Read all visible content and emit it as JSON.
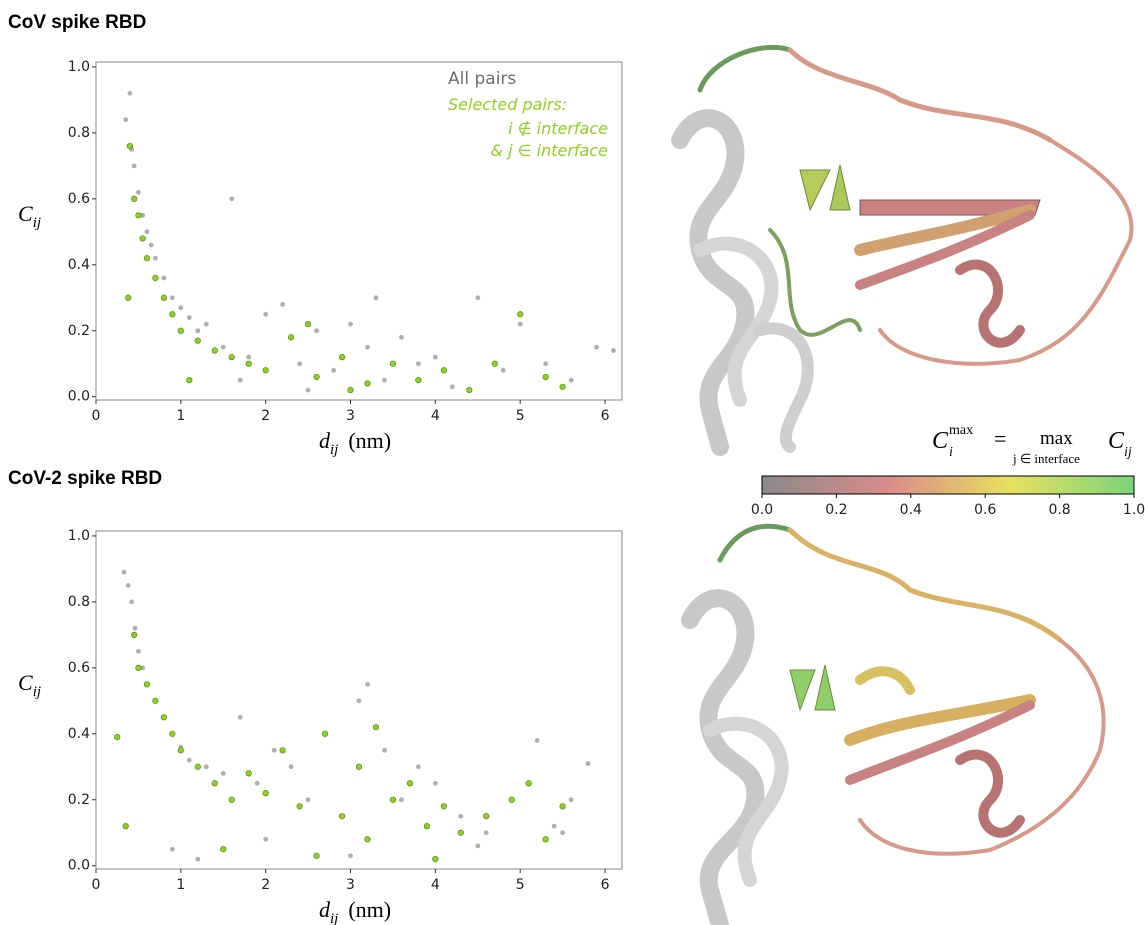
{
  "panels": [
    "CoV spike RBD",
    "CoV-2 spike RBD"
  ],
  "chart_data": [
    {
      "type": "scatter",
      "xlabel": {
        "main": "d",
        "sub": "ij",
        "unit": "(nm)"
      },
      "ylabel": {
        "main": "C",
        "sub": "ij"
      },
      "xlim": [
        0,
        6.2
      ],
      "ylim": [
        -0.01,
        1.015
      ],
      "xticks": [
        0,
        1,
        2,
        3,
        4,
        5,
        6
      ],
      "yticks": [
        {
          "value": 0,
          "label": "0.0"
        },
        {
          "value": 0.2,
          "label": "0.2"
        },
        {
          "value": 0.4,
          "label": "0.4"
        },
        {
          "value": 0.6,
          "label": "0.6"
        },
        {
          "value": 0.8,
          "label": "0.8"
        },
        {
          "value": 1,
          "label": "1.0"
        }
      ],
      "legend_lines": [
        "i ∉ interface",
        "& j ∈ interface"
      ],
      "series": [
        {
          "name": "All pairs",
          "color": "#6e6e6e",
          "x": [
            0.35,
            0.4,
            0.42,
            0.45,
            0.5,
            0.55,
            0.6,
            0.65,
            0.7,
            0.8,
            0.9,
            1.0,
            1.1,
            1.2,
            1.3,
            1.5,
            1.6,
            1.8,
            2.0,
            2.2,
            2.4,
            2.6,
            2.8,
            3.0,
            3.2,
            3.4,
            3.6,
            3.8,
            4.0,
            4.2,
            4.5,
            4.8,
            5.0,
            5.3,
            5.6,
            5.9,
            6.1,
            1.7,
            2.5,
            3.3
          ],
          "y": [
            0.84,
            0.92,
            0.75,
            0.7,
            0.62,
            0.55,
            0.5,
            0.46,
            0.42,
            0.36,
            0.3,
            0.27,
            0.24,
            0.2,
            0.22,
            0.15,
            0.6,
            0.12,
            0.25,
            0.28,
            0.1,
            0.2,
            0.08,
            0.22,
            0.15,
            0.05,
            0.18,
            0.1,
            0.12,
            0.03,
            0.3,
            0.08,
            0.22,
            0.1,
            0.05,
            0.15,
            0.14,
            0.05,
            0.02,
            0.3
          ]
        },
        {
          "name": "Selected pairs:",
          "color": "#8fd11f",
          "x": [
            0.4,
            0.45,
            0.5,
            0.55,
            0.6,
            0.7,
            0.8,
            0.9,
            1.0,
            1.2,
            1.4,
            1.6,
            1.8,
            2.0,
            2.3,
            2.6,
            2.9,
            3.2,
            3.5,
            3.8,
            4.1,
            4.4,
            4.7,
            5.0,
            5.3,
            5.5,
            0.38,
            1.1,
            2.5,
            3.0
          ],
          "y": [
            0.76,
            0.6,
            0.55,
            0.48,
            0.42,
            0.36,
            0.3,
            0.25,
            0.2,
            0.17,
            0.14,
            0.12,
            0.1,
            0.08,
            0.18,
            0.06,
            0.12,
            0.04,
            0.1,
            0.05,
            0.08,
            0.02,
            0.1,
            0.25,
            0.06,
            0.03,
            0.3,
            0.05,
            0.22,
            0.02
          ]
        }
      ]
    },
    {
      "type": "scatter",
      "xlabel": {
        "main": "d",
        "sub": "ij",
        "unit": "(nm)"
      },
      "ylabel": {
        "main": "C",
        "sub": "ij"
      },
      "xlim": [
        0,
        6.2
      ],
      "ylim": [
        -0.01,
        1.015
      ],
      "xticks": [
        0,
        1,
        2,
        3,
        4,
        5,
        6
      ],
      "yticks": [
        {
          "value": 0,
          "label": "0.0"
        },
        {
          "value": 0.2,
          "label": "0.2"
        },
        {
          "value": 0.4,
          "label": "0.4"
        },
        {
          "value": 0.6,
          "label": "0.6"
        },
        {
          "value": 0.8,
          "label": "0.8"
        },
        {
          "value": 1,
          "label": "1.0"
        }
      ],
      "series": [
        {
          "name": "All pairs",
          "color": "#6e6e6e",
          "x": [
            0.33,
            0.38,
            0.42,
            0.46,
            0.5,
            0.55,
            0.6,
            0.7,
            0.8,
            0.9,
            1.0,
            1.1,
            1.3,
            1.5,
            1.7,
            1.9,
            2.1,
            2.3,
            2.5,
            2.7,
            2.9,
            3.1,
            3.2,
            3.4,
            3.6,
            3.8,
            4.0,
            4.3,
            4.6,
            4.9,
            5.2,
            5.4,
            5.6,
            5.8,
            0.9,
            1.2,
            2.0,
            3.0,
            4.5,
            5.5
          ],
          "y": [
            0.89,
            0.85,
            0.8,
            0.72,
            0.65,
            0.6,
            0.55,
            0.5,
            0.45,
            0.4,
            0.36,
            0.32,
            0.3,
            0.28,
            0.45,
            0.25,
            0.35,
            0.3,
            0.2,
            0.4,
            0.15,
            0.5,
            0.55,
            0.35,
            0.2,
            0.3,
            0.25,
            0.15,
            0.1,
            0.2,
            0.38,
            0.12,
            0.2,
            0.31,
            0.05,
            0.02,
            0.08,
            0.03,
            0.06,
            0.1
          ]
        },
        {
          "name": "Selected pairs:",
          "color": "#8fd11f",
          "x": [
            0.25,
            0.45,
            0.5,
            0.6,
            0.7,
            0.8,
            0.9,
            1.0,
            1.2,
            1.4,
            1.6,
            1.8,
            2.0,
            2.2,
            2.4,
            2.7,
            2.9,
            3.1,
            3.3,
            3.5,
            3.7,
            3.9,
            4.1,
            4.3,
            4.6,
            4.9,
            5.1,
            5.3,
            5.5,
            0.35,
            1.5,
            2.6,
            3.2,
            4.0
          ],
          "y": [
            0.39,
            0.7,
            0.6,
            0.55,
            0.5,
            0.45,
            0.4,
            0.35,
            0.3,
            0.25,
            0.2,
            0.28,
            0.22,
            0.35,
            0.18,
            0.4,
            0.15,
            0.3,
            0.42,
            0.2,
            0.25,
            0.12,
            0.18,
            0.1,
            0.15,
            0.2,
            0.25,
            0.08,
            0.18,
            0.12,
            0.05,
            0.03,
            0.08,
            0.02
          ]
        }
      ]
    }
  ],
  "colorbar": {
    "formula": [
      "C",
      "i",
      "max",
      "=",
      "max",
      "j ∈ interface",
      "C",
      "ij"
    ],
    "lim": [
      0,
      1
    ],
    "colors": [
      "#8a8a8a",
      "#d98a8a",
      "#e8e060",
      "#7ad47a"
    ],
    "ticks": [
      {
        "value": 0,
        "label": "0.0"
      },
      {
        "value": 0.2,
        "label": "0.2"
      },
      {
        "value": 0.4,
        "label": "0.4"
      },
      {
        "value": 0.6,
        "label": "0.6"
      },
      {
        "value": 0.8,
        "label": "0.8"
      },
      {
        "value": 1,
        "label": "1.0"
      }
    ]
  }
}
